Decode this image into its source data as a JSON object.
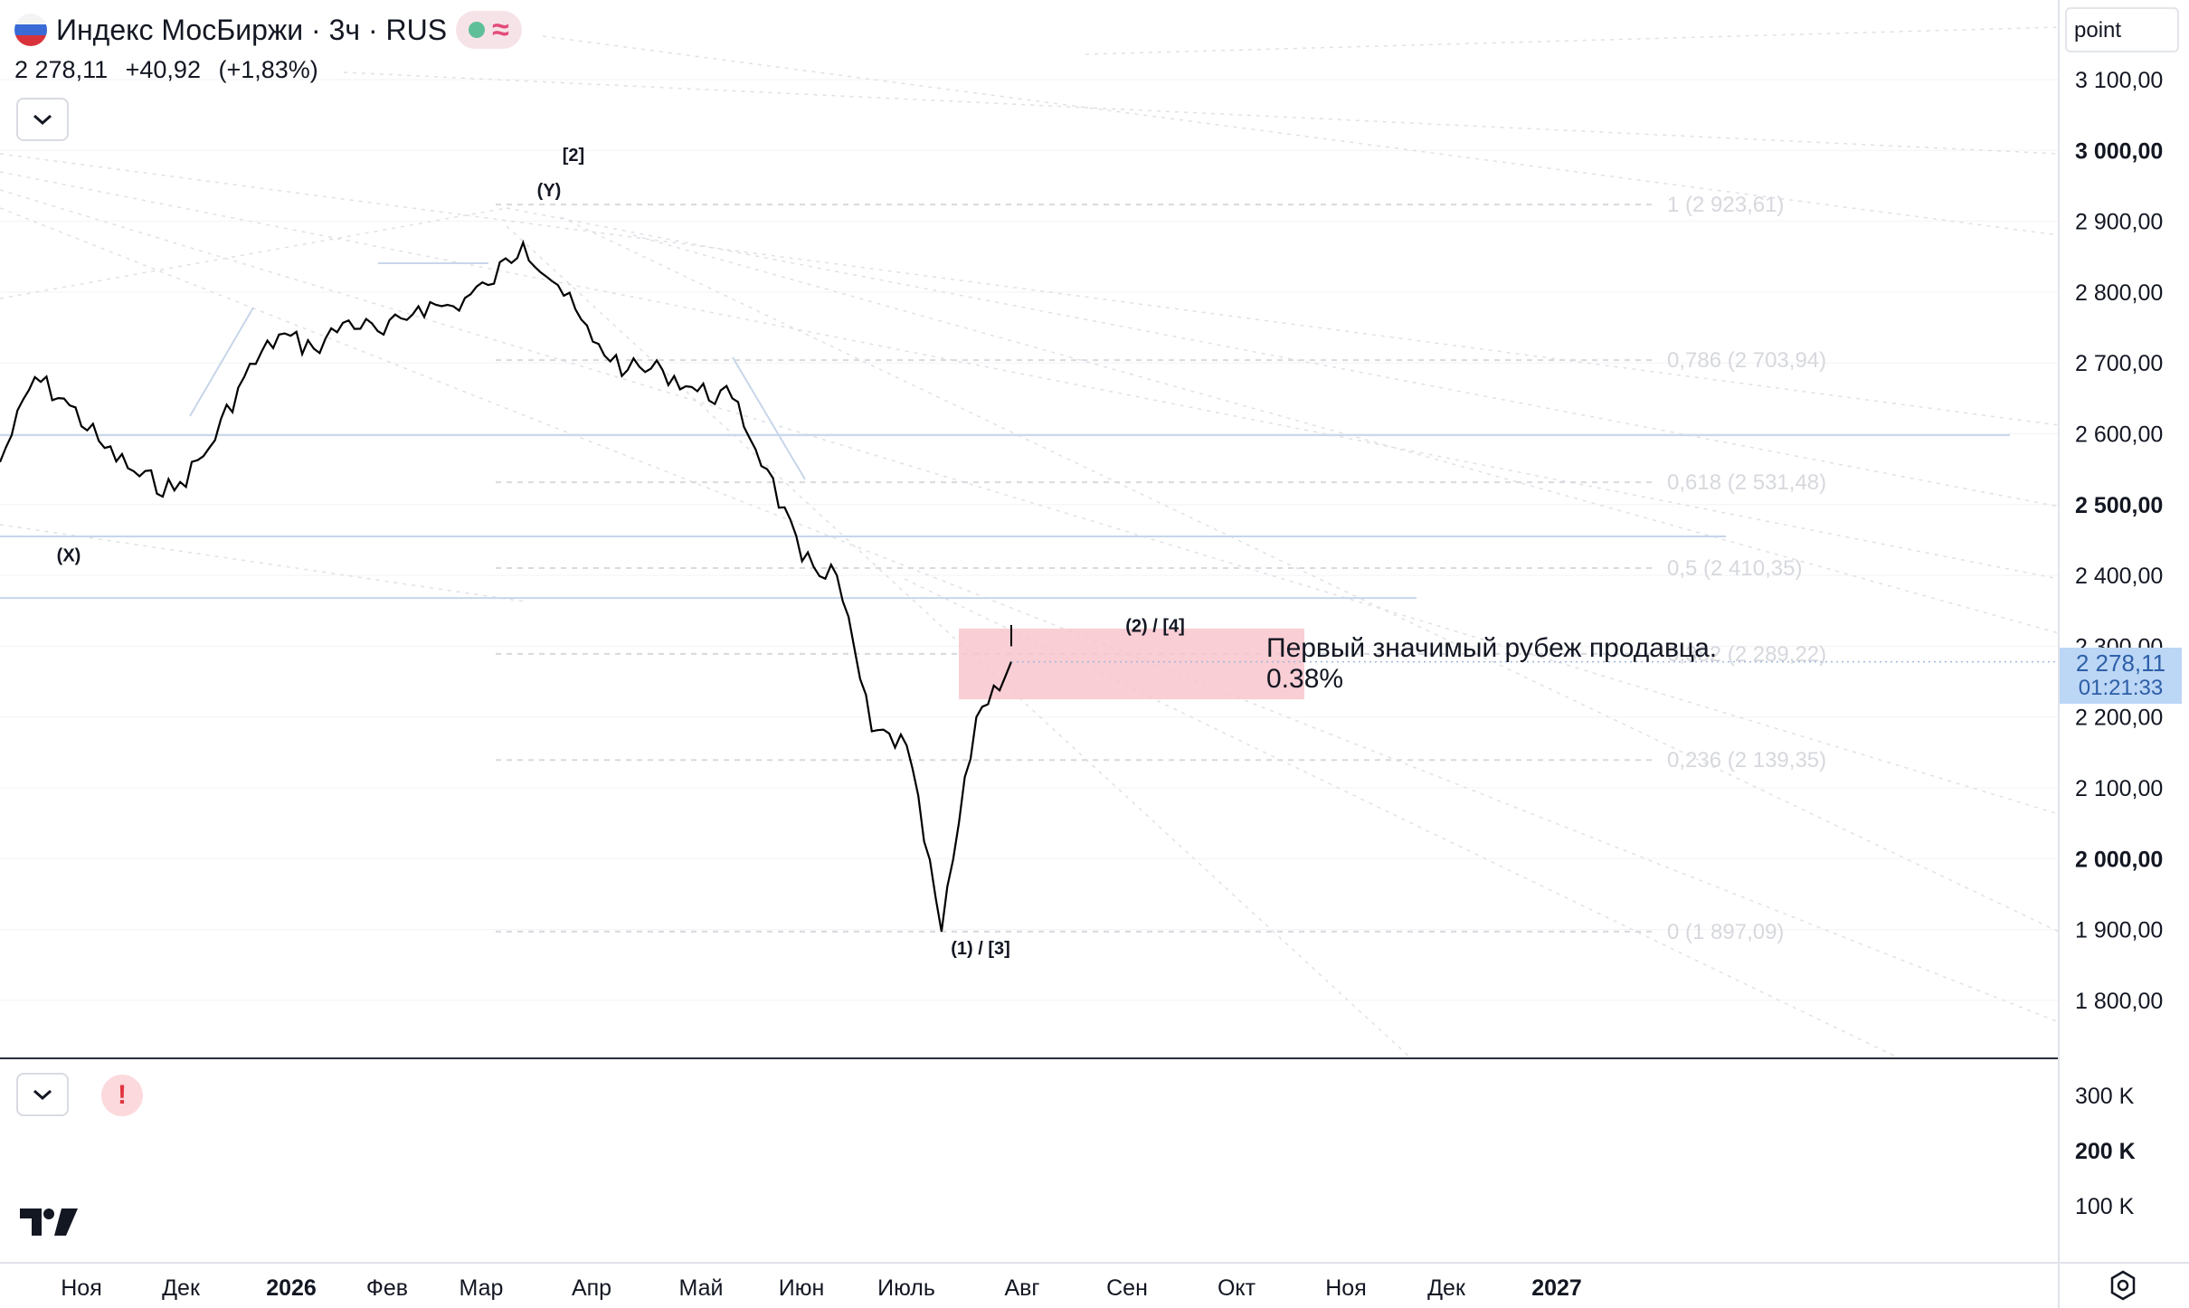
{
  "legend": {
    "symbol_title": "Индекс МосБиржи · 3ч · RUS",
    "price": "2 278,11",
    "change": "+40,92",
    "change_pct": "(+1,83%)",
    "status_icon": "market-status-dot",
    "wave_icon": "approx-wave-icon"
  },
  "scale_mode": "point",
  "current_price_tag": {
    "price": "2 278,11",
    "countdown": "01:21:33"
  },
  "annotation": {
    "line1": "Первый значимый рубеж продавца.",
    "line2": "0.38%"
  },
  "colors": {
    "candles": "#000000",
    "zone": "#f8c6cc",
    "hline": "#c7d6ea",
    "price_tag": "#bcd6f5",
    "alert": "#e0353f"
  },
  "chart_data": {
    "type": "line",
    "price_axis": [
      "3 100,00",
      "3 000,00",
      "2 900,00",
      "2 800,00",
      "2 700,00",
      "2 600,00",
      "2 500,00",
      "2 400,00",
      "2 300,00",
      "2 200,00",
      "2 100,00",
      "2 000,00",
      "1 900,00",
      "1 800,00"
    ],
    "price_axis_bold": [
      "3 000,00",
      "2 500,00",
      "2 000,00"
    ],
    "ylim": [
      1720,
      3180
    ],
    "volume_axis": [
      "300 K",
      "200 K",
      "100 K"
    ],
    "time_axis": [
      "Ноя",
      "Дек",
      "2026",
      "Фев",
      "Мар",
      "Апр",
      "Май",
      "Июн",
      "Июль",
      "Авг",
      "Сен",
      "Окт",
      "Ноя",
      "Дек",
      "2027"
    ],
    "time_axis_bold": [
      "2026",
      "2027"
    ],
    "series": [
      {
        "x": [
          "Ноя",
          "Дек",
          "2026",
          "Фев",
          "Мар",
          "Апр",
          "Май",
          "Июн",
          "Июль",
          "Авг"
        ],
        "values": [
          2640,
          2500,
          2780,
          2800,
          2870,
          2790,
          2640,
          2560,
          2160,
          2278
        ]
      }
    ],
    "path_points": [
      [
        2610,
        2560
      ],
      [
        2745,
        2680
      ],
      [
        2540,
        2640
      ],
      [
        2460,
        2580
      ],
      [
        2565,
        2540
      ],
      [
        2500,
        2520
      ],
      [
        2710,
        2580
      ],
      [
        2650,
        2680
      ],
      [
        2790,
        2740
      ],
      [
        2710,
        2720
      ],
      [
        2800,
        2760
      ],
      [
        2700,
        2740
      ],
      [
        2830,
        2780
      ],
      [
        2720,
        2780
      ],
      [
        2800,
        2810
      ],
      [
        2910,
        2870
      ],
      [
        2860,
        2810
      ],
      [
        2760,
        2730
      ],
      [
        2740,
        2690
      ],
      [
        2770,
        2690
      ],
      [
        2620,
        2660
      ],
      [
        2700,
        2650
      ],
      [
        2600,
        2550
      ],
      [
        2470,
        2420
      ],
      [
        2250,
        2400
      ],
      [
        2350,
        2180
      ],
      [
        2080,
        2160
      ],
      [
        2030,
        1897
      ],
      [
        2150,
        2200
      ],
      [
        2278,
        2278
      ]
    ],
    "wave_labels": [
      {
        "text": "[2]",
        "price": 2985
      },
      {
        "text": "(Y)",
        "price": 2935
      },
      {
        "text": "(X)",
        "price": 2420
      },
      {
        "text": "(2) / [4]",
        "price": 2320
      },
      {
        "text": "(1) / [3]",
        "price": 1865
      }
    ],
    "fib_levels": [
      {
        "label": "1 (2 923,61)",
        "value": 2923.61
      },
      {
        "label": "0,786 (2 703,94)",
        "value": 2703.94
      },
      {
        "label": "0,618 (2 531,48)",
        "value": 2531.48
      },
      {
        "label": "0,5 (2 410,35)",
        "value": 2410.35
      },
      {
        "label": "0,382 (2 289,22)",
        "value": 2289.22
      },
      {
        "label": "0,236 (2 139,35)",
        "value": 2139.35
      },
      {
        "label": "0 (1 897,09)",
        "value": 1897.09
      }
    ],
    "horizontal_levels": [
      2598,
      2455,
      2368
    ],
    "zone": {
      "from": 2225,
      "to": 2325
    }
  }
}
